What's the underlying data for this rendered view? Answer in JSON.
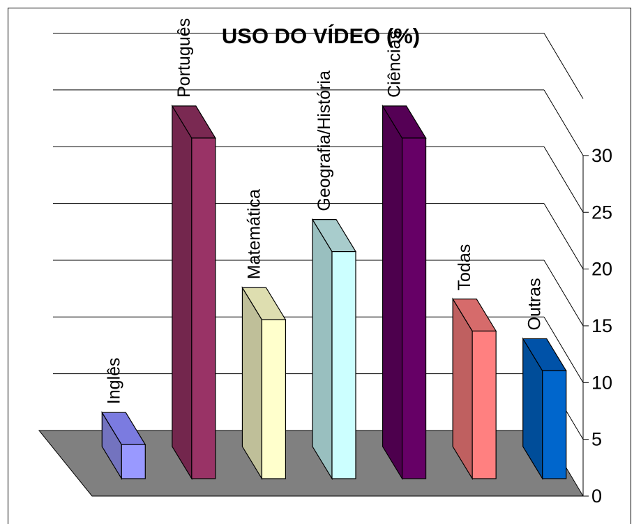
{
  "chart_data": {
    "type": "bar",
    "title": "USO DO VÍDEO (%)",
    "categories": [
      "Inglês",
      "Português",
      "Matemática",
      "Geografia/História",
      "Ciências",
      "Todas",
      "Outras"
    ],
    "series": [
      {
        "values": [
          3,
          30,
          14,
          20,
          30,
          13,
          9.5
        ],
        "colors": [
          {
            "face": "#9999FF",
            "side": "#7373BF",
            "top": "#7B7BE0"
          },
          {
            "face": "#993366",
            "side": "#73264D",
            "top": "#7A2952"
          },
          {
            "face": "#FFFFCC",
            "side": "#BFBF99",
            "top": "#DEDEB0"
          },
          {
            "face": "#CCFFFF",
            "side": "#99BFBF",
            "top": "#A8CCCC"
          },
          {
            "face": "#660066",
            "side": "#4D004D",
            "top": "#550055"
          },
          {
            "face": "#FF8080",
            "side": "#BF6060",
            "top": "#D66B6B"
          },
          {
            "face": "#0066CC",
            "side": "#004D99",
            "top": "#0052A8"
          }
        ]
      }
    ],
    "yaxis_ticks": [
      "0",
      "5",
      "10",
      "15",
      "20",
      "25",
      "30"
    ],
    "ylim": [
      0,
      30
    ],
    "gridlines": true,
    "floor_color": "#808080",
    "three_d": true
  }
}
